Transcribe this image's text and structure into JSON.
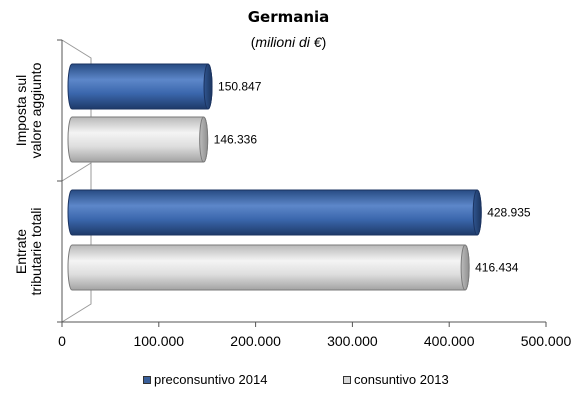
{
  "chart_data": {
    "type": "bar",
    "orientation": "horizontal",
    "title": "Germania",
    "subtitle_prefix": "(",
    "subtitle_unit": "milioni di €",
    "subtitle_suffix": ")",
    "categories": [
      [
        "Imposta sul",
        "valore aggiunto"
      ],
      [
        "Entrate",
        "tributarie totali"
      ]
    ],
    "series": [
      {
        "name": "preconsuntivo 2014",
        "values": [
          150847,
          428935
        ],
        "labels": [
          "150.847",
          "428.935"
        ],
        "color": "#3a5f9a"
      },
      {
        "name": "consuntivo 2013",
        "values": [
          146336,
          416434
        ],
        "labels": [
          "146.336",
          "416.434"
        ],
        "color": "#d2d2d2"
      }
    ],
    "xlim": [
      0,
      500000
    ],
    "xticks": [
      0,
      100000,
      200000,
      300000,
      400000,
      500000
    ],
    "xtick_labels": [
      "0",
      "100.000",
      "200.000",
      "300.000",
      "400.000",
      "500.000"
    ],
    "legend_position": "bottom"
  }
}
